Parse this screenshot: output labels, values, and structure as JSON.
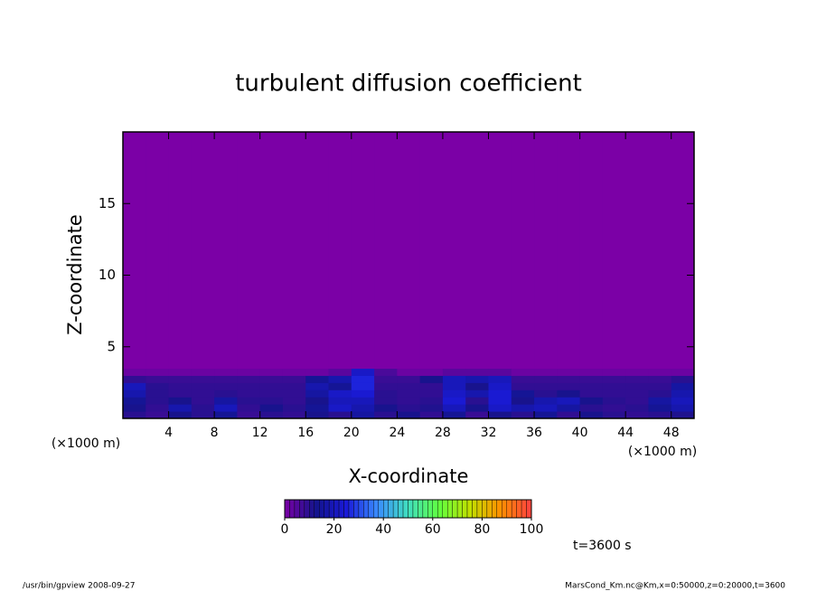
{
  "chart_data": {
    "type": "heatmap",
    "title": "turbulent diffusion coefficient",
    "x_label": "X-coordinate",
    "y_label": "Z-coordinate",
    "x_unit": "(×1000 m)",
    "annotation": "t=3600 s",
    "footer_left": "/usr/bin/gpview  2008-09-27",
    "footer_right": "MarsCond_Km.nc@Km,x=0:50000,z=0:20000,t=3600",
    "xlim": [
      0,
      50
    ],
    "ylim": [
      0,
      20
    ],
    "xticks": [
      4,
      8,
      12,
      16,
      20,
      24,
      28,
      32,
      36,
      40,
      44,
      48
    ],
    "yticks": [
      5,
      10,
      15
    ],
    "x_edges": [
      0,
      2,
      4,
      6,
      8,
      10,
      12,
      14,
      16,
      18,
      20,
      22,
      24,
      26,
      28,
      30,
      32,
      34,
      36,
      38,
      40,
      42,
      44,
      46,
      48,
      50
    ],
    "y_edges": [
      0,
      0.5,
      1,
      1.5,
      2,
      2.5,
      3,
      3.5,
      20
    ],
    "values": [
      [
        10,
        8,
        12,
        10,
        14,
        8,
        10,
        9,
        12,
        10,
        16,
        10,
        12,
        9,
        14,
        8,
        12,
        10,
        14,
        9,
        12,
        10,
        9,
        10,
        11
      ],
      [
        12,
        9,
        18,
        10,
        20,
        9,
        12,
        10,
        14,
        22,
        18,
        12,
        10,
        11,
        20,
        12,
        22,
        18,
        20,
        16,
        10,
        9,
        10,
        14,
        18
      ],
      [
        14,
        10,
        12,
        9,
        16,
        10,
        10,
        9,
        12,
        20,
        20,
        10,
        9,
        10,
        24,
        10,
        24,
        12,
        18,
        20,
        12,
        10,
        9,
        16,
        20
      ],
      [
        18,
        10,
        9,
        9,
        10,
        9,
        9,
        9,
        16,
        22,
        24,
        10,
        9,
        9,
        22,
        18,
        24,
        14,
        10,
        12,
        9,
        9,
        9,
        10,
        18
      ],
      [
        20,
        10,
        9,
        9,
        9,
        9,
        9,
        9,
        18,
        14,
        26,
        9,
        9,
        9,
        20,
        12,
        22,
        9,
        9,
        9,
        9,
        9,
        9,
        9,
        16
      ],
      [
        9,
        8,
        8,
        8,
        8,
        8,
        8,
        8,
        14,
        18,
        26,
        8,
        8,
        12,
        20,
        18,
        20,
        8,
        8,
        8,
        8,
        8,
        8,
        8,
        10
      ],
      [
        2,
        2,
        2,
        2,
        2,
        2,
        2,
        2,
        2,
        4,
        22,
        6,
        2,
        2,
        4,
        4,
        4,
        2,
        2,
        2,
        2,
        2,
        2,
        2,
        2
      ],
      [
        0,
        0,
        0,
        0,
        0,
        0,
        0,
        0,
        0,
        0,
        0,
        0,
        0,
        0,
        0,
        0,
        0,
        0,
        0,
        0,
        0,
        0,
        0,
        0,
        0
      ]
    ],
    "zlim": [
      0,
      100
    ],
    "zticks": [
      0,
      20,
      40,
      60,
      80,
      100
    ],
    "colorscale": [
      "#7b00a6",
      "#14148c",
      "#1a1ad8",
      "#3a8cff",
      "#40e0c0",
      "#60ff40",
      "#c0e000",
      "#ff9000",
      "#ff4040"
    ]
  }
}
